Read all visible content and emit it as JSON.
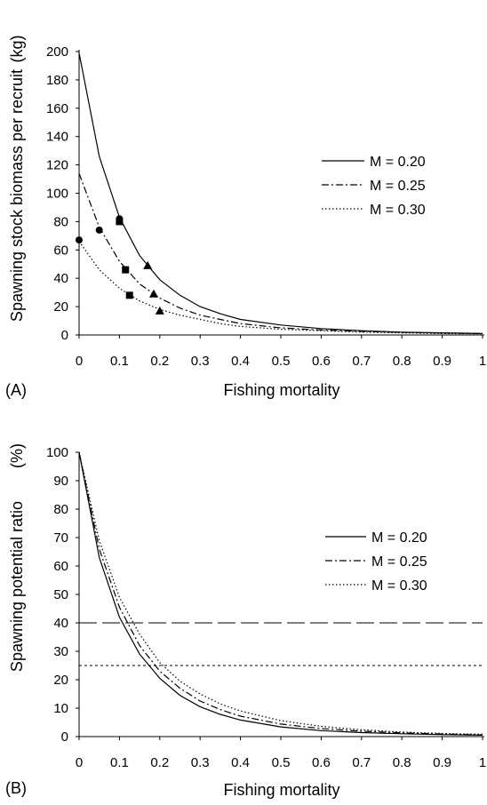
{
  "chart_data": [
    {
      "type": "line",
      "panel_label": "(A)",
      "xlabel": "Fishing mortality",
      "ylabel": "Spawning stock biomass per recruit",
      "ylabel_unit": "(kg)",
      "xlim": [
        0,
        1
      ],
      "ylim": [
        0,
        200
      ],
      "xticks": [
        "0",
        "0.1",
        "0.2",
        "0.3",
        "0.4",
        "0.5",
        "0.6",
        "0.7",
        "0.8",
        "0.9",
        "1"
      ],
      "yticks": [
        "0",
        "20",
        "40",
        "60",
        "80",
        "100",
        "120",
        "140",
        "160",
        "180",
        "200"
      ],
      "grid": false,
      "legend_position": "right",
      "x": [
        0,
        0.05,
        0.1,
        0.15,
        0.2,
        0.25,
        0.3,
        0.35,
        0.4,
        0.5,
        0.6,
        0.7,
        0.8,
        0.9,
        1.0
      ],
      "series": [
        {
          "name": "M = 0.20",
          "style": "solid",
          "values": [
            199,
            126,
            83,
            56,
            39,
            28,
            20,
            15,
            11,
            7,
            4.5,
            3,
            2,
            1.5,
            1
          ]
        },
        {
          "name": "M = 0.25",
          "style": "dashdot",
          "values": [
            114,
            76,
            52,
            36,
            26,
            19,
            14,
            11,
            8,
            5,
            3.5,
            2.5,
            1.8,
            1.3,
            1
          ]
        },
        {
          "name": "M = 0.30",
          "style": "dotted",
          "values": [
            66,
            46,
            33,
            24,
            18,
            14,
            11,
            8,
            6,
            4,
            3,
            2,
            1.5,
            1,
            0.8
          ]
        }
      ],
      "markers": [
        {
          "shape": "circle",
          "points": [
            [
              0,
              67
            ],
            [
              0.05,
              74
            ],
            [
              0.1,
              82
            ]
          ]
        },
        {
          "shape": "square",
          "points": [
            [
              0.1,
              80
            ],
            [
              0.115,
              46
            ],
            [
              0.125,
              28
            ]
          ]
        },
        {
          "shape": "triangle",
          "points": [
            [
              0.17,
              49
            ],
            [
              0.185,
              29
            ],
            [
              0.2,
              17
            ]
          ]
        }
      ]
    },
    {
      "type": "line",
      "panel_label": "(B)",
      "xlabel": "Fishing mortality",
      "ylabel": "Spawning potential ratio",
      "ylabel_unit": "(%)",
      "xlim": [
        0,
        1
      ],
      "ylim": [
        0,
        100
      ],
      "xticks": [
        "0",
        "0.1",
        "0.2",
        "0.3",
        "0.4",
        "0.5",
        "0.6",
        "0.7",
        "0.8",
        "0.9",
        "1"
      ],
      "yticks": [
        "0",
        "10",
        "20",
        "30",
        "40",
        "50",
        "60",
        "70",
        "80",
        "90",
        "100"
      ],
      "grid": false,
      "legend_position": "right",
      "x": [
        0,
        0.05,
        0.1,
        0.15,
        0.2,
        0.25,
        0.3,
        0.35,
        0.4,
        0.5,
        0.6,
        0.7,
        0.8,
        0.9,
        1.0
      ],
      "series": [
        {
          "name": "M = 0.20",
          "style": "solid",
          "values": [
            100,
            63,
            42,
            29,
            20.5,
            14.5,
            10.5,
            7.8,
            5.8,
            3.4,
            2.1,
            1.4,
            1.0,
            0.7,
            0.5
          ]
        },
        {
          "name": "M = 0.25",
          "style": "dashdot",
          "values": [
            100,
            66,
            45.5,
            32,
            23,
            17,
            12.5,
            9.5,
            7.2,
            4.4,
            2.8,
            1.9,
            1.3,
            0.9,
            0.6
          ]
        },
        {
          "name": "M = 0.30",
          "style": "dotted",
          "values": [
            100,
            69,
            49,
            36,
            26,
            19.5,
            15,
            11.5,
            9,
            5.6,
            3.6,
            2.4,
            1.6,
            1.1,
            0.8
          ]
        }
      ],
      "reference_lines": [
        {
          "y": 40,
          "style": "longdash"
        },
        {
          "y": 25,
          "style": "shortdash"
        }
      ]
    }
  ]
}
